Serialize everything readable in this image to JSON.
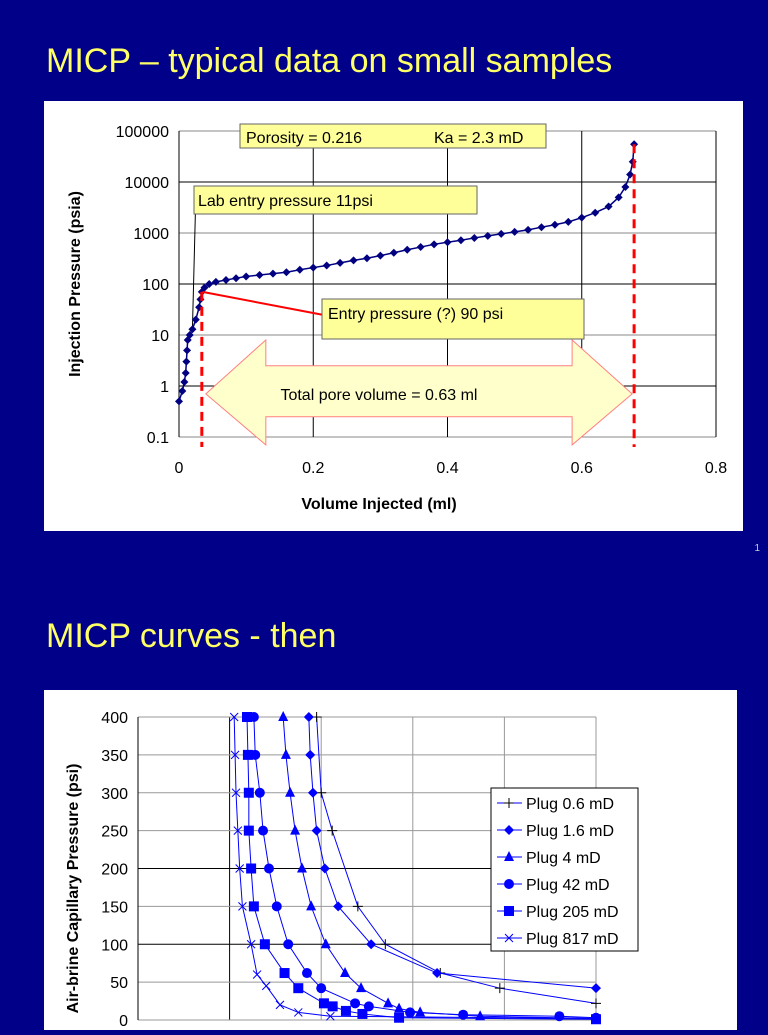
{
  "slides": [
    {
      "title": "MICP – typical data on small samples",
      "number": "1"
    },
    {
      "title": "MICP curves - then"
    }
  ],
  "colors": {
    "background": "#000088",
    "title": "#ffff66",
    "series": "#000080",
    "annotation_fill": "#ffff99",
    "red": "#ff0000",
    "plot_blue": "#0000ff"
  },
  "chart_data": [
    {
      "type": "scatter",
      "xlabel": "Volume Injected (ml)",
      "ylabel": "Injection Pressure (psia)",
      "xlim": [
        0,
        0.8
      ],
      "ylim": [
        0.1,
        100000
      ],
      "yscale": "log",
      "grid": true,
      "xticks": [
        "0",
        "0.2",
        "0.4",
        "0.6",
        "0.8"
      ],
      "yticks": [
        "0.1",
        "1",
        "10",
        "100",
        "1000",
        "10000",
        "100000"
      ],
      "marker": "diamond",
      "points": [
        [
          0,
          0.5
        ],
        [
          0.005,
          0.8
        ],
        [
          0.008,
          1.2
        ],
        [
          0.01,
          1.8
        ],
        [
          0.011,
          3
        ],
        [
          0.012,
          5
        ],
        [
          0.013,
          8
        ],
        [
          0.016,
          10
        ],
        [
          0.02,
          13
        ],
        [
          0.025,
          20
        ],
        [
          0.03,
          35
        ],
        [
          0.032,
          50
        ],
        [
          0.034,
          70
        ],
        [
          0.038,
          85
        ],
        [
          0.045,
          100
        ],
        [
          0.055,
          110
        ],
        [
          0.07,
          120
        ],
        [
          0.085,
          130
        ],
        [
          0.1,
          140
        ],
        [
          0.12,
          150
        ],
        [
          0.14,
          160
        ],
        [
          0.16,
          170
        ],
        [
          0.18,
          190
        ],
        [
          0.2,
          210
        ],
        [
          0.22,
          230
        ],
        [
          0.24,
          260
        ],
        [
          0.26,
          290
        ],
        [
          0.28,
          320
        ],
        [
          0.3,
          360
        ],
        [
          0.32,
          410
        ],
        [
          0.34,
          470
        ],
        [
          0.36,
          530
        ],
        [
          0.38,
          600
        ],
        [
          0.4,
          660
        ],
        [
          0.42,
          720
        ],
        [
          0.44,
          800
        ],
        [
          0.46,
          880
        ],
        [
          0.48,
          960
        ],
        [
          0.5,
          1050
        ],
        [
          0.52,
          1150
        ],
        [
          0.54,
          1300
        ],
        [
          0.56,
          1450
        ],
        [
          0.58,
          1650
        ],
        [
          0.6,
          2000
        ],
        [
          0.62,
          2500
        ],
        [
          0.64,
          3300
        ],
        [
          0.655,
          5000
        ],
        [
          0.665,
          8000
        ],
        [
          0.672,
          14000
        ],
        [
          0.676,
          25000
        ],
        [
          0.678,
          55000
        ]
      ],
      "annotations": {
        "porosity": "Porosity = 0.216",
        "ka": "Ka = 2.3 mD",
        "lab_entry": "Lab entry pressure 11psi",
        "entry": "Entry pressure (?) 90 psi",
        "pore_volume": "Total pore volume = 0.63 ml"
      },
      "markers_x": [
        0.034,
        0.678
      ]
    },
    {
      "type": "line",
      "ylabel": "Air-brine Capillary Pressure (psi)",
      "ylim": [
        0,
        400
      ],
      "xlim": [
        0,
        1
      ],
      "grid": true,
      "yticks": [
        "0",
        "50",
        "100",
        "150",
        "200",
        "250",
        "300",
        "350",
        "400"
      ],
      "legend_position": "right",
      "series": [
        {
          "name": "Plug 0.6 mD",
          "marker": "plus",
          "points": [
            [
              0.39,
              400
            ],
            [
              0.4,
              300
            ],
            [
              0.424,
              250
            ],
            [
              0.48,
              150
            ],
            [
              0.54,
              100
            ],
            [
              0.66,
              62
            ],
            [
              0.79,
              42
            ],
            [
              1.0,
              22
            ]
          ]
        },
        {
          "name": "Plug 1.6 mD",
          "marker": "diamond",
          "points": [
            [
              0.373,
              400
            ],
            [
              0.376,
              350
            ],
            [
              0.382,
              300
            ],
            [
              0.39,
              250
            ],
            [
              0.408,
              200
            ],
            [
              0.437,
              150
            ],
            [
              0.509,
              100
            ],
            [
              0.653,
              62
            ],
            [
              1.0,
              42
            ]
          ]
        },
        {
          "name": "Plug 4 mD",
          "marker": "triangle",
          "points": [
            [
              0.317,
              400
            ],
            [
              0.323,
              350
            ],
            [
              0.332,
              300
            ],
            [
              0.343,
              250
            ],
            [
              0.358,
              200
            ],
            [
              0.378,
              150
            ],
            [
              0.41,
              100
            ],
            [
              0.452,
              62
            ],
            [
              0.487,
              42
            ],
            [
              0.546,
              22
            ],
            [
              0.57,
              15
            ],
            [
              0.616,
              10
            ],
            [
              0.747,
              5
            ],
            [
              1.0,
              2
            ]
          ]
        },
        {
          "name": "Plug 42 mD",
          "marker": "circle",
          "points": [
            [
              0.253,
              400
            ],
            [
              0.256,
              350
            ],
            [
              0.266,
              300
            ],
            [
              0.273,
              250
            ],
            [
              0.286,
              200
            ],
            [
              0.303,
              150
            ],
            [
              0.328,
              100
            ],
            [
              0.369,
              62
            ],
            [
              0.4,
              42
            ],
            [
              0.474,
              22
            ],
            [
              0.504,
              18
            ],
            [
              0.594,
              10
            ],
            [
              0.71,
              7
            ],
            [
              0.92,
              5
            ],
            [
              1.0,
              3
            ]
          ]
        },
        {
          "name": "Plug 205 mD",
          "marker": "square",
          "points": [
            [
              0.238,
              400
            ],
            [
              0.24,
              350
            ],
            [
              0.242,
              300
            ],
            [
              0.242,
              250
            ],
            [
              0.247,
              200
            ],
            [
              0.253,
              150
            ],
            [
              0.277,
              100
            ],
            [
              0.32,
              62
            ],
            [
              0.35,
              42
            ],
            [
              0.406,
              22
            ],
            [
              0.425,
              18
            ],
            [
              0.454,
              12
            ],
            [
              0.49,
              8
            ],
            [
              0.57,
              3
            ],
            [
              1.0,
              1
            ]
          ]
        },
        {
          "name": "Plug 817 mD",
          "marker": "x",
          "points": [
            [
              0.21,
              400
            ],
            [
              0.212,
              350
            ],
            [
              0.214,
              300
            ],
            [
              0.218,
              250
            ],
            [
              0.222,
              200
            ],
            [
              0.228,
              150
            ],
            [
              0.247,
              100
            ],
            [
              0.26,
              60
            ],
            [
              0.28,
              45
            ],
            [
              0.31,
              20
            ],
            [
              0.35,
              10
            ],
            [
              0.42,
              5
            ],
            [
              1.0,
              2
            ]
          ]
        }
      ]
    }
  ]
}
